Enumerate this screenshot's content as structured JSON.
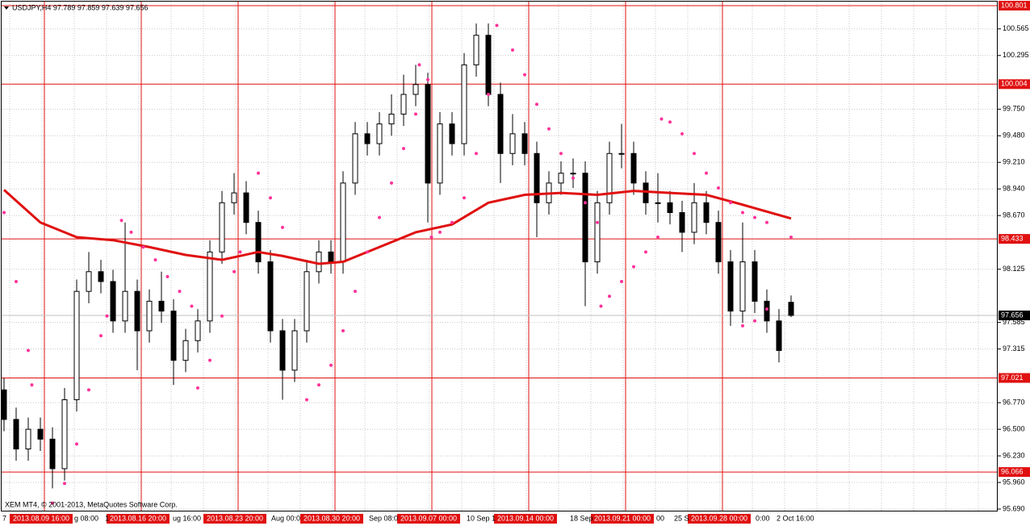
{
  "chart_data": {
    "type": "candlestick",
    "title": "USDJPY,H4  97.789 97.859 97.639 97.656",
    "footer": "XEM MT4, © 2001-2013, MetaQuotes Software Corp.",
    "open": [
      96.9,
      96.6,
      96.3,
      96.5,
      96.4,
      96.1,
      96.8,
      97.9,
      98.1,
      98.0,
      97.6,
      97.9,
      97.5,
      97.8,
      97.7,
      97.2,
      97.4,
      97.6,
      98.3,
      98.8,
      98.9,
      98.6,
      98.2,
      97.5,
      97.1,
      97.5,
      98.1,
      98.3,
      98.2,
      99.0,
      99.5,
      99.4,
      99.6,
      99.7,
      99.9,
      100.0,
      99.0,
      99.6,
      99.4,
      100.2,
      100.5,
      99.9,
      99.3,
      99.5,
      99.3,
      98.8,
      99.0,
      99.1,
      99.1,
      98.2,
      98.8,
      99.3,
      99.3,
      99.0,
      98.8,
      98.8,
      98.7,
      98.5,
      98.8,
      98.6,
      98.2,
      97.7,
      98.2,
      97.8,
      97.6,
      97.789
    ],
    "high": [
      97.02,
      96.72,
      96.62,
      96.62,
      96.52,
      96.92,
      98.02,
      98.3,
      98.22,
      98.12,
      98.6,
      98.02,
      97.92,
      98.1,
      97.82,
      97.52,
      97.72,
      98.42,
      98.92,
      99.1,
      99.02,
      98.72,
      98.32,
      97.62,
      97.62,
      98.22,
      98.42,
      98.42,
      99.12,
      99.62,
      99.62,
      99.72,
      99.9,
      100.1,
      100.2,
      100.12,
      99.72,
      99.72,
      100.32,
      100.62,
      100.62,
      100.02,
      99.7,
      99.62,
      99.42,
      99.12,
      99.22,
      99.25,
      99.22,
      98.92,
      99.42,
      99.6,
      99.42,
      99.12,
      99.1,
      98.92,
      98.82,
      99.0,
      98.92,
      98.72,
      98.32,
      98.6,
      98.32,
      97.92,
      97.72,
      97.859
    ],
    "low": [
      96.48,
      96.18,
      96.18,
      96.28,
      95.9,
      95.98,
      96.68,
      97.78,
      97.88,
      97.48,
      97.48,
      97.1,
      97.38,
      97.58,
      96.95,
      97.08,
      97.28,
      97.48,
      98.18,
      98.68,
      98.48,
      98.08,
      97.38,
      96.8,
      96.98,
      97.38,
      97.98,
      98.08,
      98.08,
      98.88,
      99.28,
      99.28,
      99.48,
      99.58,
      99.78,
      98.6,
      98.88,
      99.28,
      99.28,
      100.08,
      99.78,
      99.0,
      99.18,
      99.18,
      98.45,
      98.68,
      98.88,
      98.95,
      97.75,
      98.08,
      98.68,
      99.15,
      98.88,
      98.68,
      98.6,
      98.58,
      98.3,
      98.38,
      98.48,
      98.08,
      97.55,
      97.58,
      97.68,
      97.48,
      97.18,
      97.639
    ],
    "close": [
      96.6,
      96.3,
      96.5,
      96.4,
      96.1,
      96.8,
      97.9,
      98.1,
      98.0,
      97.6,
      97.9,
      97.5,
      97.8,
      97.7,
      97.2,
      97.4,
      97.6,
      98.3,
      98.8,
      98.9,
      98.6,
      98.2,
      97.5,
      97.1,
      97.5,
      98.1,
      98.3,
      98.2,
      99.0,
      99.5,
      99.4,
      99.6,
      99.7,
      99.9,
      100.0,
      99.0,
      99.6,
      99.4,
      100.2,
      100.5,
      99.9,
      99.3,
      99.5,
      99.3,
      98.8,
      99.0,
      99.1,
      99.1,
      98.2,
      98.8,
      99.3,
      99.3,
      99.0,
      98.8,
      98.8,
      98.7,
      98.5,
      98.8,
      98.6,
      98.2,
      97.7,
      98.2,
      97.8,
      97.6,
      97.3,
      97.656
    ],
    "ma": {
      "color": "#e01010",
      "x": [
        0,
        3,
        6,
        9,
        12,
        15,
        18,
        21,
        23,
        26,
        28,
        31,
        34,
        37,
        40,
        43,
        46,
        49,
        52,
        55,
        58,
        61,
        65
      ],
      "values": [
        98.93,
        98.6,
        98.45,
        98.42,
        98.35,
        98.27,
        98.22,
        98.3,
        98.26,
        98.18,
        98.2,
        98.35,
        98.5,
        98.58,
        98.8,
        98.88,
        98.9,
        98.88,
        98.92,
        98.9,
        98.88,
        98.78,
        98.64
      ]
    },
    "sar": {
      "color": "#ff3399",
      "x": [
        0,
        1,
        2,
        2.3,
        4,
        5,
        6,
        7,
        8,
        8.5,
        9.7,
        10.5,
        11.5,
        12.5,
        13.5,
        14.5,
        15.5,
        16,
        17,
        18,
        19,
        19.5,
        21,
        22,
        23,
        25,
        26,
        27,
        28,
        29,
        30,
        31,
        32,
        33,
        34,
        34.3,
        35,
        35.3,
        36,
        37,
        38,
        39,
        40,
        40.7,
        42,
        43,
        44,
        45,
        46,
        47,
        48,
        49,
        49.3,
        50,
        51,
        52,
        53,
        54,
        54.3,
        55,
        56,
        57,
        58,
        59,
        60,
        61,
        62,
        63,
        65,
        61,
        62,
        63
      ],
      "values": [
        98.7,
        98.0,
        97.3,
        96.95,
        95.75,
        95.95,
        96.35,
        96.9,
        97.45,
        97.65,
        98.62,
        98.5,
        98.35,
        98.22,
        98.05,
        97.9,
        97.75,
        96.92,
        97.2,
        97.65,
        98.1,
        98.3,
        99.1,
        98.85,
        98.55,
        96.8,
        96.95,
        97.15,
        97.5,
        97.9,
        98.3,
        98.65,
        99.0,
        99.35,
        99.7,
        100.2,
        100.05,
        98.45,
        98.5,
        98.6,
        98.85,
        99.3,
        99.9,
        100.6,
        100.35,
        100.1,
        99.8,
        99.55,
        99.3,
        99.05,
        98.8,
        98.6,
        97.75,
        97.85,
        98.0,
        98.15,
        98.3,
        98.45,
        99.65,
        99.62,
        99.5,
        99.3,
        99.1,
        98.95,
        98.8,
        98.7,
        98.65,
        98.6,
        98.45,
        97.55,
        97.6,
        97.72
      ]
    },
    "levels": [
      100.801,
      100.004,
      98.433,
      97.021,
      96.066
    ],
    "level_color": "#e01010",
    "current": 97.656,
    "ylim": [
      95.69,
      100.801
    ],
    "yticks": [
      100.565,
      100.295,
      {
        "value": 99.75,
        "label": "99.750"
      },
      {
        "value": 99.48,
        "label": "99.480"
      },
      {
        "value": 99.21,
        "label": "99.210"
      },
      {
        "value": 98.94,
        "label": "98.940"
      },
      {
        "value": 98.67,
        "label": "98.670"
      },
      98.125,
      97.585,
      97.315,
      {
        "value": 96.77,
        "label": "96.770"
      },
      {
        "value": 96.5,
        "label": "96.500"
      },
      {
        "value": 96.23,
        "label": "96.230"
      },
      {
        "value": 95.96,
        "label": "95.960"
      },
      {
        "value": 95.69,
        "label": "95.690"
      }
    ],
    "grid": true,
    "time_labels": [
      "7",
      "g 08:00",
      "1",
      "ug 16:00",
      "Aug 00:0",
      "Sep 08:0",
      "10 Sep 1",
      "18 Sep",
      "00",
      "25 S",
      "0:00",
      "2 Oct 16:00"
    ],
    "separator_labels": [
      "2013.08.09 16:00",
      "2013.08.16 20:00",
      "2013.08.23 20:00",
      "2013.08.30 20:00",
      "2013.09.07 00:00",
      "2013.09.14 00:00",
      "2013.09.21 00:00",
      "2013.09.28 00:00"
    ]
  }
}
